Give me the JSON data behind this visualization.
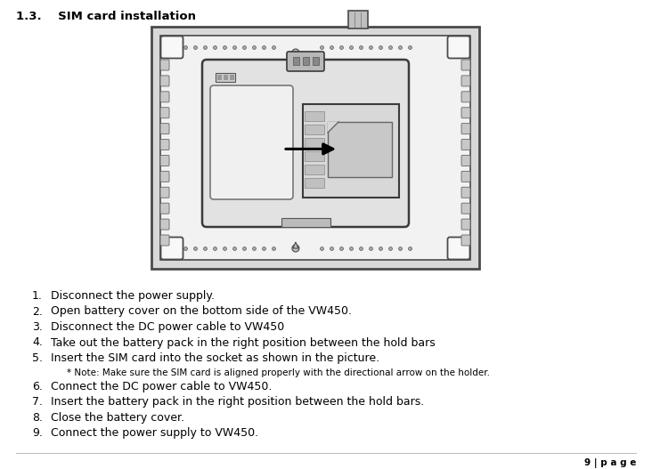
{
  "title": "1.3.    SIM card installation",
  "title_fontsize": 9.5,
  "body_items": [
    {
      "num": "1.",
      "text": "Disconnect the power supply."
    },
    {
      "num": "2.",
      "text": "Open battery cover on the bottom side of the VW450."
    },
    {
      "num": "3.",
      "text": "Disconnect the DC power cable to VW450"
    },
    {
      "num": "4.",
      "text": "Take out the battery pack in the right position between the hold bars"
    },
    {
      "num": "5.",
      "text": "Insert the SIM card into the socket as shown in the picture."
    },
    {
      "num": "",
      "text": "* Note: Make sure the SIM card is aligned properly with the directional arrow on the holder.",
      "small": true
    },
    {
      "num": "6.",
      "text": "Connect the DC power cable to VW450."
    },
    {
      "num": "7.",
      "text": "Insert the battery pack in the right position between the hold bars."
    },
    {
      "num": "8.",
      "text": "Close the battery cover."
    },
    {
      "num": "9.",
      "text": "Connect the power supply to VW450."
    }
  ],
  "page_num": "9 | p a g e",
  "bg_color": "#ffffff",
  "text_color": "#000000"
}
